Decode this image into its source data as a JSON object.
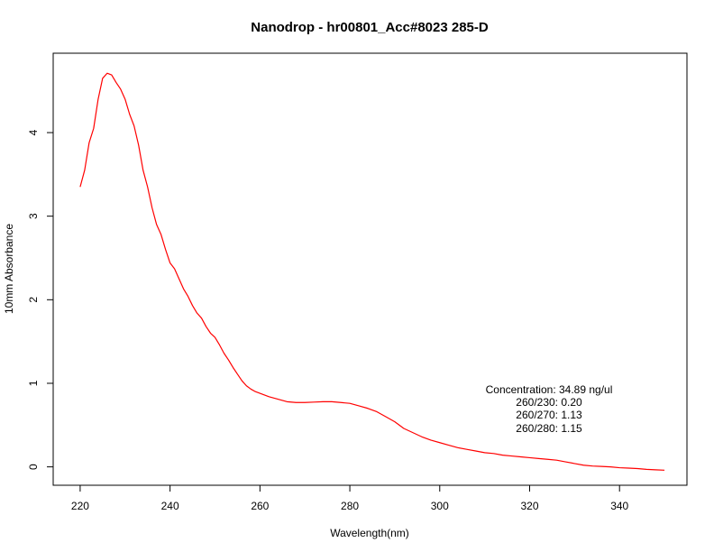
{
  "chart_data": {
    "type": "line",
    "title": "Nanodrop - hr00801_Acc#8023 285-D",
    "xlabel": "Wavelength(nm)",
    "ylabel": "10mm Absorbance",
    "xlim": [
      214,
      355
    ],
    "ylim": [
      -0.22,
      4.95
    ],
    "x_ticks": [
      220,
      240,
      260,
      280,
      300,
      320,
      340
    ],
    "y_ticks": [
      0,
      1,
      2,
      3,
      4
    ],
    "grid": false,
    "legend": "none",
    "series": [
      {
        "color": "#ff0000",
        "x": [
          220,
          221,
          222,
          223,
          224,
          225,
          226,
          227,
          228,
          229,
          230,
          231,
          232,
          233,
          234,
          235,
          236,
          237,
          238,
          239,
          240,
          241,
          242,
          243,
          244,
          245,
          246,
          247,
          248,
          249,
          250,
          251,
          252,
          253,
          254,
          255,
          256,
          257,
          258,
          259,
          260,
          262,
          264,
          266,
          268,
          270,
          272,
          274,
          276,
          278,
          280,
          282,
          284,
          286,
          288,
          290,
          292,
          294,
          296,
          298,
          300,
          302,
          304,
          306,
          308,
          310,
          312,
          314,
          316,
          318,
          320,
          322,
          324,
          326,
          328,
          330,
          332,
          334,
          336,
          338,
          340,
          342,
          344,
          346,
          348,
          350
        ],
        "y": [
          3.35,
          3.55,
          3.88,
          4.05,
          4.4,
          4.65,
          4.71,
          4.69,
          4.6,
          4.52,
          4.4,
          4.22,
          4.08,
          3.85,
          3.55,
          3.35,
          3.1,
          2.9,
          2.78,
          2.6,
          2.44,
          2.37,
          2.25,
          2.13,
          2.04,
          1.93,
          1.84,
          1.78,
          1.68,
          1.6,
          1.55,
          1.46,
          1.36,
          1.28,
          1.19,
          1.11,
          1.03,
          0.97,
          0.93,
          0.9,
          0.88,
          0.84,
          0.81,
          0.78,
          0.77,
          0.77,
          0.775,
          0.78,
          0.78,
          0.77,
          0.76,
          0.73,
          0.7,
          0.66,
          0.6,
          0.54,
          0.46,
          0.41,
          0.36,
          0.32,
          0.29,
          0.26,
          0.23,
          0.21,
          0.19,
          0.17,
          0.16,
          0.14,
          0.13,
          0.12,
          0.11,
          0.1,
          0.09,
          0.08,
          0.06,
          0.04,
          0.02,
          0.01,
          0.005,
          0.0,
          -0.01,
          -0.015,
          -0.02,
          -0.03,
          -0.035,
          -0.04
        ]
      }
    ],
    "annotations": [
      "Concentration: 34.89 ng/ul",
      "260/230: 0.20",
      "260/270: 1.13",
      "260/280: 1.15"
    ]
  }
}
